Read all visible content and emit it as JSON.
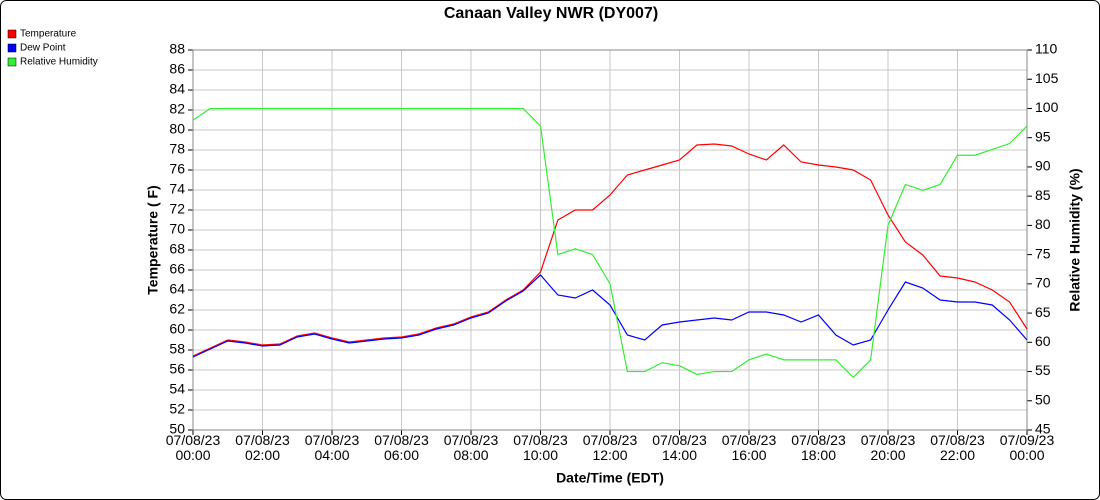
{
  "chart_data": {
    "type": "line",
    "title": "Canaan Valley NWR (DY007)",
    "x_label": "Date/Time (EDT)",
    "y_label": "Temperature ( F)",
    "y2_label": "Relative Humidity (%)",
    "xlim": [
      0,
      24
    ],
    "xticks": [
      {
        "value": 0,
        "label": "07/08/23\n00:00"
      },
      {
        "value": 2,
        "label": "07/08/23\n02:00"
      },
      {
        "value": 4,
        "label": "07/08/23\n04:00"
      },
      {
        "value": 6,
        "label": "07/08/23\n06:00"
      },
      {
        "value": 8,
        "label": "07/08/23\n08:00"
      },
      {
        "value": 10,
        "label": "07/08/23\n10:00"
      },
      {
        "value": 12,
        "label": "07/08/23\n12:00"
      },
      {
        "value": 14,
        "label": "07/08/23\n14:00"
      },
      {
        "value": 16,
        "label": "07/08/23\n16:00"
      },
      {
        "value": 18,
        "label": "07/08/23\n18:00"
      },
      {
        "value": 20,
        "label": "07/08/23\n20:00"
      },
      {
        "value": 22,
        "label": "07/08/23\n22:00"
      },
      {
        "value": 24,
        "label": "07/09/23\n00:00"
      }
    ],
    "ylim": [
      50,
      88
    ],
    "yticks": [
      50,
      52,
      54,
      56,
      58,
      60,
      62,
      64,
      66,
      68,
      70,
      72,
      74,
      76,
      78,
      80,
      82,
      84,
      86,
      88
    ],
    "y2lim": [
      45,
      110
    ],
    "y2ticks": [
      45,
      50,
      55,
      60,
      65,
      70,
      75,
      80,
      85,
      90,
      95,
      100,
      105,
      110
    ],
    "grid": true,
    "legend": "top-left",
    "x": [
      0,
      0.5,
      1,
      1.5,
      2,
      2.5,
      3,
      3.5,
      4,
      4.5,
      5,
      5.5,
      6,
      6.5,
      7,
      7.5,
      8,
      8.5,
      9,
      9.5,
      10,
      10.5,
      11,
      11.5,
      12,
      12.5,
      13,
      13.5,
      14,
      14.5,
      15,
      15.5,
      16,
      16.5,
      17,
      17.5,
      18,
      18.5,
      19,
      19.5,
      20,
      20.5,
      21,
      21.5,
      22,
      22.5,
      23,
      23.5,
      24
    ],
    "series": [
      {
        "name": "Temperature",
        "color": "#ff0000",
        "values": [
          57.4,
          58.2,
          59.0,
          58.8,
          58.5,
          58.6,
          59.4,
          59.7,
          59.2,
          58.8,
          59.0,
          59.2,
          59.3,
          59.6,
          60.2,
          60.6,
          61.3,
          61.8,
          63.0,
          64.0,
          65.8,
          71.0,
          72.0,
          72.0,
          73.5,
          75.5,
          76.0,
          76.5,
          77.0,
          78.5,
          78.6,
          78.4,
          77.6,
          77.0,
          78.5,
          76.8,
          76.5,
          76.3,
          76.0,
          75.0,
          71.5,
          68.8,
          67.5,
          65.4,
          65.2,
          64.8,
          64.0,
          62.8,
          60.1
        ]
      },
      {
        "name": "Dew Point",
        "color": "#0000ff",
        "values": [
          57.3,
          58.1,
          58.9,
          58.7,
          58.4,
          58.5,
          59.3,
          59.6,
          59.1,
          58.7,
          58.9,
          59.1,
          59.2,
          59.5,
          60.1,
          60.5,
          61.2,
          61.7,
          62.9,
          63.9,
          65.5,
          63.5,
          63.2,
          64.0,
          62.5,
          59.5,
          59.0,
          60.5,
          60.8,
          61.0,
          61.2,
          61.0,
          61.8,
          61.8,
          61.5,
          60.8,
          61.5,
          59.5,
          58.5,
          59.0,
          62.0,
          64.8,
          64.2,
          63.0,
          62.8,
          62.8,
          62.5,
          61.0,
          59.0
        ]
      },
      {
        "name": "Relative Humidity",
        "color": "#33ee33",
        "axis": "y2",
        "values": [
          98,
          100,
          100,
          100,
          100,
          100,
          100,
          100,
          100,
          100,
          100,
          100,
          100,
          100,
          100,
          100,
          100,
          100,
          100,
          100,
          97,
          75,
          76,
          75,
          70,
          55,
          55,
          56.5,
          56,
          54.5,
          55,
          55,
          57,
          58,
          57,
          57,
          57,
          57,
          54,
          57,
          80,
          87,
          86,
          87,
          92,
          92,
          93,
          94,
          97
        ]
      }
    ]
  }
}
